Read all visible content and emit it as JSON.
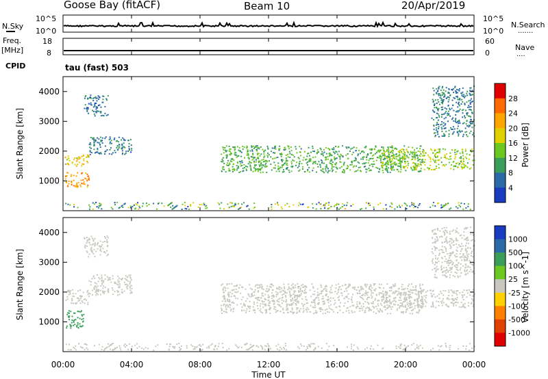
{
  "header": {
    "station": "Goose Bay (fitACF)",
    "beam": "Beam 10",
    "date": "20/Apr/2019"
  },
  "top_panel": {
    "left_label": "N.Sky",
    "left_ticks": [
      "10^5",
      "10^0"
    ],
    "right_ticks": [
      "10^5",
      "10^0"
    ],
    "right_label": "N.Search",
    "right_marker": "......."
  },
  "freq_panel": {
    "left_label_1": "Freq.",
    "left_label_2": "[MHz]",
    "left_ticks": [
      "18",
      "8"
    ],
    "right_ticks": [
      "60",
      "0"
    ],
    "right_label": "Nave",
    "right_marker": "...."
  },
  "cpid": {
    "label": "CPID",
    "value": "tau (fast) 503"
  },
  "power_panel": {
    "ylabel": "Slant Range [km]",
    "yticks": [
      "4000",
      "3000",
      "2000",
      "1000"
    ],
    "colorbar_label": "Power [dB]",
    "colorbar_ticks": [
      "28",
      "24",
      "20",
      "16",
      "12",
      "8",
      "4"
    ],
    "colorbar_colors": [
      "#e00000",
      "#ff6a00",
      "#ffa500",
      "#e0d000",
      "#6cc820",
      "#3a9e5a",
      "#2a6aa8",
      "#1a3cc0"
    ]
  },
  "velocity_panel": {
    "ylabel": "Slant Range [km]",
    "yticks": [
      "4000",
      "3000",
      "2000",
      "1000"
    ],
    "colorbar_label": "Velocity [m s^-1]",
    "colorbar_ticks": [
      "1000",
      "500",
      "100",
      "25",
      "-25",
      "-100",
      "-500",
      "-1000"
    ],
    "colorbar_colors": [
      "#1a3cc0",
      "#2a6aa8",
      "#3a9e5a",
      "#6cc820",
      "#c8c8c0",
      "#ffd000",
      "#ff8000",
      "#e04000",
      "#e00000"
    ]
  },
  "xaxis": {
    "label": "Time UT",
    "ticks": [
      "00:00",
      "04:00",
      "08:00",
      "12:00",
      "16:00",
      "20:00",
      "00:00"
    ]
  },
  "chart_data": [
    {
      "type": "heatmap",
      "name": "power",
      "x_range": [
        "00:00",
        "24:00"
      ],
      "ylim": [
        0,
        4500
      ],
      "color_scale": [
        0,
        30
      ],
      "regions": [
        {
          "t0": 0.1,
          "t1": 1.5,
          "r0": 1500,
          "r1": 1900,
          "level": 18
        },
        {
          "t0": 0.1,
          "t1": 1.5,
          "r0": 800,
          "r1": 1300,
          "level": 22
        },
        {
          "t0": 1.5,
          "t1": 4.0,
          "r0": 1900,
          "r1": 2500,
          "level": 6
        },
        {
          "t0": 1.2,
          "t1": 2.6,
          "r0": 3200,
          "r1": 3900,
          "level": 5
        },
        {
          "t0": 9.2,
          "t1": 21.0,
          "r0": 1300,
          "r1": 2200,
          "level": 10
        },
        {
          "t0": 18.5,
          "t1": 24.0,
          "r0": 1400,
          "r1": 2100,
          "level": 14
        },
        {
          "t0": 21.5,
          "t1": 24.0,
          "r0": 2500,
          "r1": 4200,
          "level": 6
        }
      ]
    },
    {
      "type": "heatmap",
      "name": "velocity",
      "x_range": [
        "00:00",
        "24:00"
      ],
      "ylim": [
        0,
        4500
      ],
      "color_scale": [
        -1000,
        1000
      ],
      "regions": [
        {
          "t0": 0.1,
          "t1": 1.5,
          "r0": 1600,
          "r1": 2100,
          "level": 0
        },
        {
          "t0": 0.1,
          "t1": 1.2,
          "r0": 800,
          "r1": 1400,
          "level": 200
        },
        {
          "t0": 1.5,
          "t1": 4.0,
          "r0": 1900,
          "r1": 2600,
          "level": 0
        },
        {
          "t0": 1.2,
          "t1": 2.6,
          "r0": 3200,
          "r1": 3900,
          "level": 0
        },
        {
          "t0": 9.2,
          "t1": 21.0,
          "r0": 1300,
          "r1": 2300,
          "level": 0
        },
        {
          "t0": 18.5,
          "t1": 24.0,
          "r0": 1500,
          "r1": 2100,
          "level": 0
        },
        {
          "t0": 21.5,
          "t1": 24.0,
          "r0": 2500,
          "r1": 4200,
          "level": 0
        }
      ]
    }
  ]
}
